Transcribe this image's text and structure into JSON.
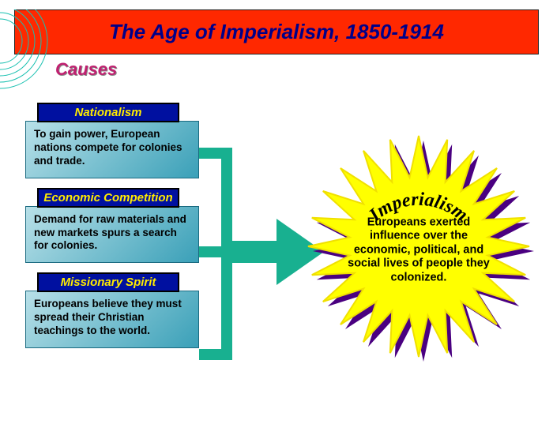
{
  "banner": {
    "text": "The Age of Imperialism, 1850-1914",
    "bg_color": "#ff2800",
    "text_color": "#000088"
  },
  "section_label": {
    "text": "Causes",
    "color": "#c02070"
  },
  "causes": [
    {
      "header": "Nationalism",
      "body": "To gain power, European nations compete for colonies and trade."
    },
    {
      "header": "Economic Competition",
      "body": "Demand for raw materials and new markets spurs a search for colonies."
    },
    {
      "header": "Missionary Spirit",
      "body": "Europeans believe they must spread their Christian teachings to the world."
    }
  ],
  "cause_box_style": {
    "header_bg": "#0010a0",
    "header_text": "#ffeb00",
    "header_border": "#000000",
    "body_bg1": "#b8e0e8",
    "body_bg2": "#3aa0b8",
    "body_border": "#1a6a80"
  },
  "arrow": {
    "color": "#18b090"
  },
  "starburst": {
    "fill": "#ffff00",
    "stroke": "#f0e000",
    "shadow": "#4a0080",
    "curved_title": "Imperialism",
    "curved_title_color": "#000000",
    "curved_title_fontsize": 24,
    "body": "Europeans exerted influence over the economic, political, and social lives of people they colonized."
  },
  "decoration": {
    "line_color": "#18c0b0"
  }
}
